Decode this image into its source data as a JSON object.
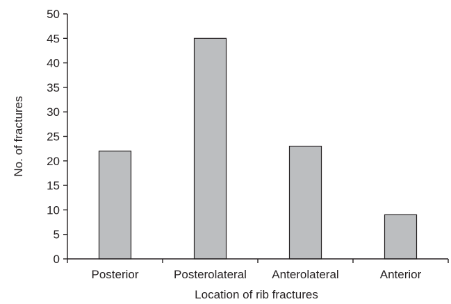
{
  "chart_data": {
    "type": "bar",
    "title": "",
    "xlabel": "Location of rib fractures",
    "ylabel": "No. of fractures",
    "categories": [
      "Posterior",
      "Posterolateral",
      "Anterolateral",
      "Anterior"
    ],
    "values": [
      22,
      45,
      23,
      9
    ],
    "ylim": [
      0,
      50
    ],
    "yticks": [
      0,
      5,
      10,
      15,
      20,
      25,
      30,
      35,
      40,
      45,
      50
    ],
    "grid": false,
    "legend": "none",
    "colors": {
      "bar_fill": "#bcbec0",
      "bar_stroke": "#231f20",
      "axis": "#231f20"
    }
  }
}
